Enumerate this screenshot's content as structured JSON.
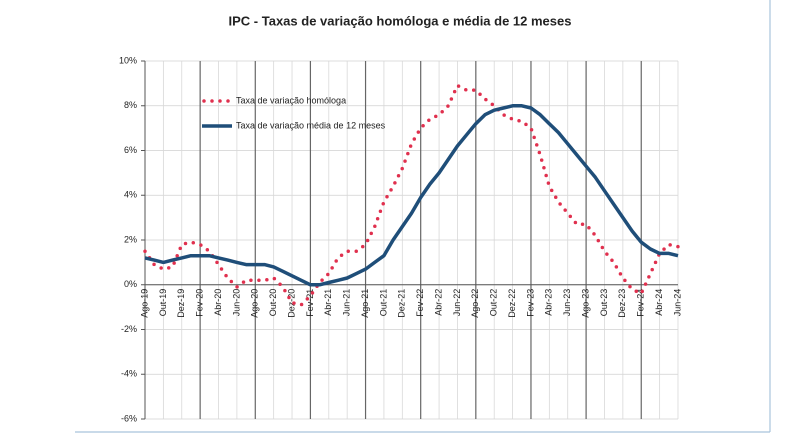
{
  "chart_data": {
    "type": "line",
    "title": "IPC - Taxas de variação homóloga e média de 12 meses",
    "categories": [
      "Ago-19",
      null,
      "Out-19",
      null,
      "Dez-19",
      null,
      "Fev-20",
      null,
      "Abr-20",
      null,
      "Jun-20",
      null,
      "Ago-20",
      null,
      "Out-20",
      null,
      "Dez-20",
      null,
      "Fev-21",
      null,
      "Abr-21",
      null,
      "Jun-21",
      null,
      "Ago-21",
      null,
      "Out-21",
      null,
      "Dez-21",
      null,
      "Fev-22",
      null,
      "Abr-22",
      null,
      "Jun-22",
      null,
      "Ago-22",
      null,
      "Out-22",
      null,
      "Dez-22",
      null,
      "Fev-23",
      null,
      "Abr-23",
      null,
      "Jun-23",
      null,
      "Ago-23",
      null,
      "Out-23",
      null,
      "Dez-23",
      null,
      "Fev-24",
      null,
      "Abr-24",
      null,
      "Jun-24"
    ],
    "series": [
      {
        "name": "Taxa de variação homóloga",
        "color": "#e0304e",
        "style": "dotted",
        "values": [
          1.5,
          0.9,
          0.7,
          0.8,
          1.8,
          1.9,
          1.8,
          1.5,
          0.9,
          0.3,
          -0.1,
          0.2,
          0.2,
          0.2,
          0.3,
          -0.1,
          -0.8,
          -0.9,
          -0.5,
          0.1,
          0.5,
          1.2,
          1.5,
          1.5,
          1.8,
          2.6,
          3.7,
          4.4,
          5.2,
          6.3,
          7.0,
          7.4,
          7.6,
          8.0,
          8.9,
          8.7,
          8.7,
          8.3,
          8.0,
          7.6,
          7.4,
          7.3,
          7.0,
          5.8,
          4.4,
          3.7,
          3.2,
          2.7,
          2.7,
          2.2,
          1.5,
          1.0,
          0.3,
          -0.2,
          -0.4,
          0.5,
          1.4,
          1.8,
          1.7
        ]
      },
      {
        "name": "Taxa de variação média de 12 meses",
        "color": "#1f4e79",
        "style": "solid",
        "values": [
          1.2,
          1.1,
          1.0,
          1.1,
          1.2,
          1.3,
          1.3,
          1.3,
          1.2,
          1.1,
          1.0,
          0.9,
          0.9,
          0.9,
          0.8,
          0.6,
          0.4,
          0.2,
          0.0,
          0.0,
          0.1,
          0.2,
          0.3,
          0.5,
          0.7,
          1.0,
          1.3,
          2.0,
          2.6,
          3.2,
          3.9,
          4.5,
          5.0,
          5.6,
          6.2,
          6.7,
          7.2,
          7.6,
          7.8,
          7.9,
          8.0,
          8.0,
          7.9,
          7.6,
          7.2,
          6.8,
          6.3,
          5.8,
          5.3,
          4.8,
          4.2,
          3.6,
          3.0,
          2.4,
          1.9,
          1.6,
          1.4,
          1.4,
          1.3
        ]
      }
    ],
    "ylim": [
      -6,
      10
    ],
    "yticks": [
      {
        "value": -6,
        "label": "-6%"
      },
      {
        "value": -4,
        "label": "-4%"
      },
      {
        "value": -2,
        "label": "-2%"
      },
      {
        "value": 0,
        "label": "0%"
      },
      {
        "value": 2,
        "label": "2%"
      },
      {
        "value": 4,
        "label": "4%"
      },
      {
        "value": 6,
        "label": "6%"
      },
      {
        "value": 8,
        "label": "8%"
      },
      {
        "value": 10,
        "label": "10%"
      }
    ],
    "grid": true,
    "legend": "upper left"
  }
}
